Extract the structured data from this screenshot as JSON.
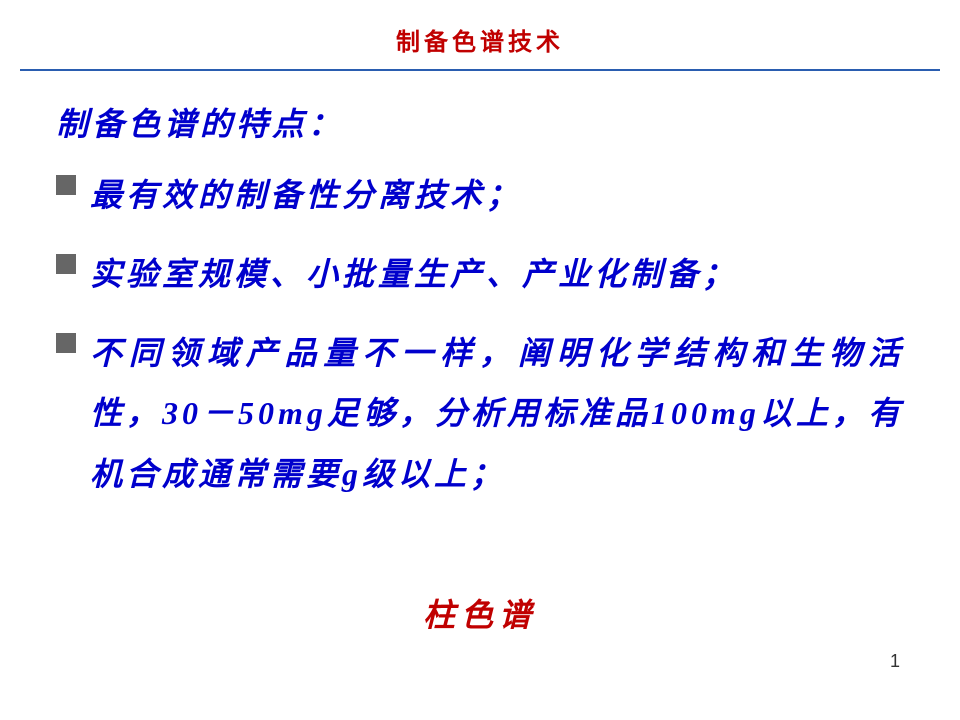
{
  "header": {
    "title": "制备色谱技术",
    "title_color": "#c00000",
    "divider_color": "#2a5db0"
  },
  "content": {
    "subtitle": "制备色谱的特点：",
    "subtitle_color": "#0000cc",
    "bullets": [
      "最有效的制备性分离技术；",
      "实验室规模、小批量生产、产业化制备；",
      "不同领域产品量不一样，阐明化学结构和生物活性，30－50mg足够，分析用标准品100mg以上，有机合成通常需要g级以上；"
    ],
    "bullet_text_color": "#0000cc",
    "bullet_marker_color": "#666666"
  },
  "footer": {
    "text": "柱色谱",
    "text_color": "#c00000"
  },
  "page_number": "1",
  "styling": {
    "font_family": "KaiTi",
    "title_fontsize": 24,
    "body_fontsize": 32,
    "background_color": "#ffffff",
    "letter_spacing": 4,
    "line_height": 1.9
  }
}
